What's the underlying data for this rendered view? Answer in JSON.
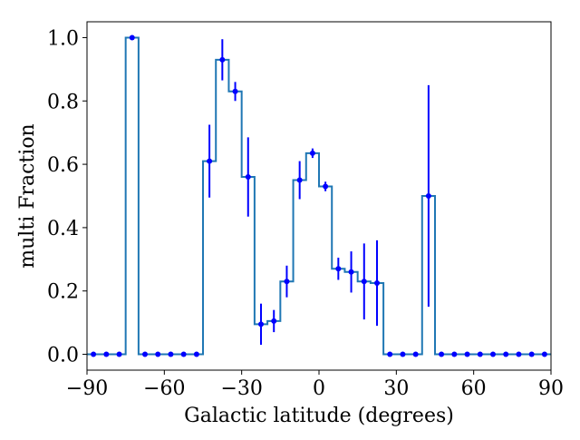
{
  "chart_data": {
    "type": "line",
    "title": "",
    "xlabel": "Galactic latitude (degrees)",
    "ylabel": "multi Fraction",
    "xlim": [
      -90,
      90
    ],
    "ylim": [
      -0.05,
      1.05
    ],
    "xticks": [
      -90,
      -60,
      -30,
      0,
      30,
      60,
      90
    ],
    "yticks": [
      0.0,
      0.2,
      0.4,
      0.6,
      0.8,
      1.0
    ],
    "xtick_labels": [
      "−90",
      "−60",
      "−30",
      "0",
      "30",
      "60",
      "90"
    ],
    "ytick_labels": [
      "0.0",
      "0.2",
      "0.4",
      "0.6",
      "0.8",
      "1.0"
    ],
    "grid": false,
    "colors": {
      "step": "#1f77b4",
      "points": "#0000ff"
    },
    "series": [
      {
        "x": [
          -87.5,
          -82.5,
          -77.5,
          -72.5,
          -67.5,
          -62.5,
          -57.5,
          -52.5,
          -47.5,
          -42.5,
          -37.5,
          -32.5,
          -27.5,
          -22.5,
          -17.5,
          -12.5,
          -7.5,
          -2.5,
          2.5,
          7.5,
          12.5,
          17.5,
          22.5,
          27.5,
          32.5,
          37.5,
          42.5,
          47.5,
          52.5,
          57.5,
          62.5,
          67.5,
          72.5,
          77.5,
          82.5,
          87.5
        ],
        "y": [
          0.0,
          0.0,
          0.0,
          1.0,
          0.0,
          0.0,
          0.0,
          0.0,
          0.0,
          0.61,
          0.93,
          0.83,
          0.56,
          0.095,
          0.105,
          0.23,
          0.55,
          0.635,
          0.53,
          0.27,
          0.26,
          0.23,
          0.225,
          0.0,
          0.0,
          0.0,
          0.5,
          0.0,
          0.0,
          0.0,
          0.0,
          0.0,
          0.0,
          0.0,
          0.0,
          0.0
        ],
        "yerr": [
          0,
          0,
          0,
          0,
          0,
          0,
          0,
          0,
          0,
          0.115,
          0.065,
          0.03,
          0.125,
          0.065,
          0.035,
          0.05,
          0.06,
          0.015,
          0.015,
          0.035,
          0.065,
          0.12,
          0.135,
          0,
          0,
          0,
          0.35,
          0,
          0,
          0,
          0,
          0,
          0,
          0,
          0,
          0
        ]
      }
    ]
  }
}
